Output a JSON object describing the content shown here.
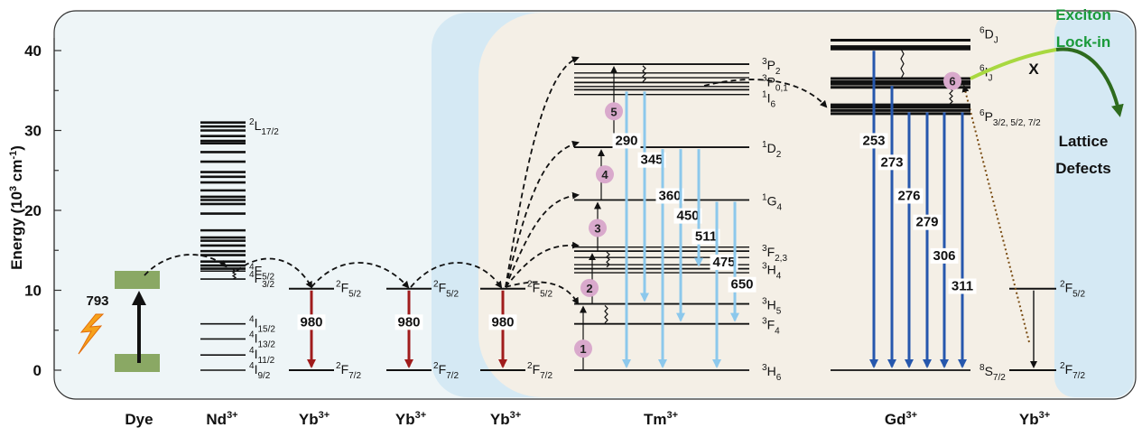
{
  "axis": {
    "ylabel": "Energy (10",
    "ylabel_sup": "3",
    "ylabel_unit": " cm",
    "ylabel_sup2": "-1",
    "ylabel_end": ")",
    "yticks": [
      "0",
      "10",
      "20",
      "30",
      "40"
    ],
    "ylim": [
      0,
      42
    ]
  },
  "ions": [
    {
      "name": "Dye",
      "sup": ""
    },
    {
      "name": "Nd",
      "sup": "3+"
    },
    {
      "name": "Yb",
      "sup": "3+"
    },
    {
      "name": "Yb",
      "sup": "3+"
    },
    {
      "name": "Yb",
      "sup": "3+"
    },
    {
      "name": "Tm",
      "sup": "3+"
    },
    {
      "name": "Gd",
      "sup": "3+"
    },
    {
      "name": "Yb",
      "sup": "3+"
    }
  ],
  "dye": {
    "excitation": "793"
  },
  "nd_levels": [
    {
      "main": "I",
      "pre": "4",
      "sub": "9/2",
      "e": 0
    },
    {
      "main": "I",
      "pre": "4",
      "sub": "11/2",
      "e": 1.9
    },
    {
      "main": "I",
      "pre": "4",
      "sub": "13/2",
      "e": 3.9
    },
    {
      "main": "I",
      "pre": "4",
      "sub": "15/2",
      "e": 5.8
    },
    {
      "main": "F",
      "pre": "4",
      "sub": "3/2",
      "e": 11.4
    },
    {
      "main": "F",
      "pre": "4",
      "sub": "5/2",
      "e": 12.4
    },
    {
      "main": "L",
      "pre": "2",
      "sub": "17/2",
      "e": 30.5
    }
  ],
  "yb_levels": {
    "upper": {
      "pre": "2",
      "main": "F",
      "sub": "5/2"
    },
    "lower": {
      "pre": "2",
      "main": "F",
      "sub": "7/2"
    },
    "emission": "980"
  },
  "tm_levels": [
    {
      "pre": "3",
      "main": "H",
      "sub": "6",
      "e": 0
    },
    {
      "pre": "3",
      "main": "F",
      "sub": "4",
      "e": 5.8
    },
    {
      "pre": "3",
      "main": "H",
      "sub": "5",
      "e": 8.3
    },
    {
      "pre": "3",
      "main": "H",
      "sub": "4",
      "e": 12.7
    },
    {
      "pre": "3",
      "main": "F",
      "sub": "2,3",
      "e": 14.9
    },
    {
      "pre": "1",
      "main": "G",
      "sub": "4",
      "e": 21.3
    },
    {
      "pre": "1",
      "main": "D",
      "sub": "2",
      "e": 27.9
    },
    {
      "pre": "1",
      "main": "I",
      "sub": "6",
      "e": 35.1
    },
    {
      "pre": "3",
      "main": "P",
      "sub": "0,1",
      "e": 36.0
    },
    {
      "pre": "3",
      "main": "P",
      "sub": "2",
      "e": 38.3
    }
  ],
  "tm_steps": [
    "1",
    "2",
    "3",
    "4",
    "5"
  ],
  "tm_emissions": [
    "290",
    "345",
    "360",
    "450",
    "511",
    "475",
    "650"
  ],
  "gd_levels": [
    {
      "pre": "8",
      "main": "S",
      "sub": "7/2",
      "e": 0
    },
    {
      "pre": "6",
      "main": "P",
      "sub": "3/2, 5/2, 7/2",
      "e": 32.5
    },
    {
      "pre": "6",
      "main": "I",
      "sub": "J",
      "e": 35.8
    },
    {
      "pre": "6",
      "main": "D",
      "sub": "J",
      "e": 40.5
    }
  ],
  "gd_step": "6",
  "gd_emissions": [
    "253",
    "273",
    "276",
    "279",
    "306",
    "311"
  ],
  "annotations": {
    "lockin_line1": "Exciton",
    "lockin_line2": "Lock-in",
    "blocked": "X",
    "defects_line1": "Lattice",
    "defects_line2": "Defects"
  },
  "colors": {
    "panel_light": "#eef5f7",
    "panel_blue": "#d5e9f4",
    "panel_beige": "#f4efe6",
    "dye_green": "#8aa864",
    "yb_red": "#a01c1c",
    "tm_blue": "#8cc8ec",
    "gd_blue": "#2657ad",
    "step_pink": "#d9a9cc",
    "lockin_green": "#1a9a3a",
    "lime": "#a8d840"
  }
}
